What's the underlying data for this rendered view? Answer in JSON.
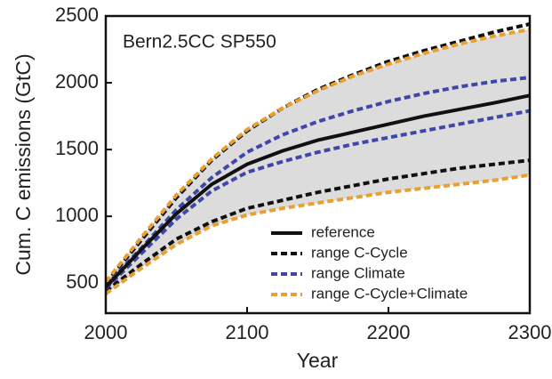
{
  "chart_data": {
    "type": "line",
    "annotation": "Bern2.5CC SP550",
    "x_label": "Year",
    "y_label": "Cum. C emissions (GtC)",
    "x": [
      2000,
      2025,
      2050,
      2075,
      2100,
      2125,
      2150,
      2175,
      2200,
      2225,
      2250,
      2275,
      2300
    ],
    "xlim": [
      2000,
      2300
    ],
    "xticks": [
      2000,
      2100,
      2200,
      2300
    ],
    "ylim": [
      275,
      2500
    ],
    "yticks": [
      500,
      1000,
      1500,
      2000,
      2500
    ],
    "band_color": "#dcdcdc",
    "series": [
      {
        "name": "reference",
        "color": "#111111",
        "dashed": false,
        "values": [
          470,
          750,
          1020,
          1240,
          1390,
          1490,
          1570,
          1630,
          1690,
          1750,
          1800,
          1850,
          1905
        ]
      },
      {
        "name": "range C-Cycle",
        "color": "#111111",
        "dashed": true,
        "upper": [
          500,
          820,
          1140,
          1420,
          1640,
          1810,
          1950,
          2060,
          2160,
          2240,
          2310,
          2380,
          2440
        ],
        "lower": [
          440,
          640,
          830,
          960,
          1060,
          1120,
          1180,
          1230,
          1280,
          1320,
          1360,
          1390,
          1420
        ]
      },
      {
        "name": "range Climate",
        "color": "#3f48a8",
        "dashed": true,
        "upper": [
          480,
          760,
          1050,
          1290,
          1480,
          1610,
          1710,
          1790,
          1860,
          1920,
          1970,
          2010,
          2040
        ],
        "lower": [
          460,
          720,
          980,
          1190,
          1330,
          1410,
          1480,
          1540,
          1590,
          1640,
          1690,
          1740,
          1790
        ]
      },
      {
        "name": "range C-Cycle+Climate",
        "color": "#e8a030",
        "dashed": true,
        "band": true,
        "upper": [
          510,
          840,
          1160,
          1430,
          1650,
          1810,
          1940,
          2050,
          2140,
          2220,
          2290,
          2350,
          2400
        ],
        "lower": [
          420,
          610,
          790,
          930,
          1010,
          1060,
          1100,
          1140,
          1180,
          1210,
          1240,
          1270,
          1310
        ]
      }
    ]
  }
}
